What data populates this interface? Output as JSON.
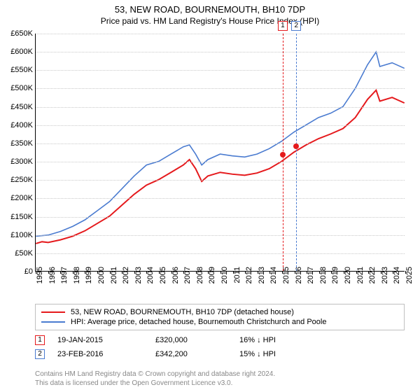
{
  "title": {
    "main": "53, NEW ROAD, BOURNEMOUTH, BH10 7DP",
    "sub": "Price paid vs. HM Land Registry's House Price Index (HPI)"
  },
  "chart": {
    "type": "line",
    "background_color": "#ffffff",
    "grid_color": "#c8c8c8",
    "axis_color": "#000000",
    "label_fontsize": 11,
    "x_axis": {
      "min": 1995,
      "max": 2025,
      "tick_step": 1,
      "labels": [
        "1995",
        "1996",
        "1997",
        "1998",
        "1999",
        "2000",
        "2001",
        "2002",
        "2003",
        "2004",
        "2005",
        "2006",
        "2007",
        "2008",
        "2009",
        "2010",
        "2011",
        "2012",
        "2013",
        "2014",
        "2015",
        "2016",
        "2017",
        "2018",
        "2019",
        "2020",
        "2021",
        "2022",
        "2023",
        "2024",
        "2025"
      ]
    },
    "y_axis": {
      "min": 0,
      "max": 650,
      "tick_step": 50,
      "labels": [
        "£0",
        "£50K",
        "£100K",
        "£150K",
        "£200K",
        "£250K",
        "£300K",
        "£350K",
        "£400K",
        "£450K",
        "£500K",
        "£550K",
        "£600K",
        "£650K"
      ]
    },
    "series": [
      {
        "name": "53, NEW ROAD, BOURNEMOUTH, BH10 7DP (detached house)",
        "color": "#e5191c",
        "line_width": 2,
        "years": [
          1995,
          1995.5,
          1996,
          1997,
          1998,
          1999,
          2000,
          2001,
          2002,
          2003,
          2004,
          2005,
          2006,
          2007,
          2007.5,
          2008,
          2008.5,
          2009,
          2010,
          2011,
          2012,
          2013,
          2014,
          2015,
          2016,
          2017,
          2018,
          2019,
          2020,
          2021,
          2022,
          2022.7,
          2023,
          2024,
          2025
        ],
        "values": [
          75,
          80,
          78,
          85,
          95,
          110,
          130,
          150,
          180,
          210,
          235,
          250,
          270,
          290,
          305,
          280,
          245,
          260,
          270,
          265,
          262,
          268,
          280,
          300,
          325,
          345,
          362,
          375,
          390,
          420,
          470,
          495,
          465,
          475,
          460
        ]
      },
      {
        "name": "HPI: Average price, detached house, Bournemouth Christchurch and Poole",
        "color": "#4a7bd0",
        "line_width": 1.6,
        "years": [
          1995,
          1996,
          1997,
          1998,
          1999,
          2000,
          2001,
          2002,
          2003,
          2004,
          2005,
          2006,
          2007,
          2007.5,
          2008,
          2008.5,
          2009,
          2010,
          2011,
          2012,
          2013,
          2014,
          2015,
          2016,
          2017,
          2018,
          2019,
          2020,
          2021,
          2022,
          2022.7,
          2023,
          2024,
          2025
        ],
        "values": [
          95,
          98,
          108,
          122,
          140,
          165,
          190,
          225,
          260,
          290,
          300,
          320,
          340,
          345,
          320,
          290,
          305,
          320,
          315,
          312,
          320,
          335,
          355,
          380,
          400,
          420,
          432,
          450,
          500,
          565,
          600,
          560,
          570,
          555
        ]
      }
    ],
    "sale_markers": [
      {
        "n": "1",
        "year": 2015.05,
        "border_color": "#e5191c"
      },
      {
        "n": "2",
        "year": 2016.15,
        "border_color": "#4a7bd0"
      }
    ],
    "sale_points": [
      {
        "year": 2015.05,
        "value": 320,
        "color": "#e5191c"
      },
      {
        "year": 2016.15,
        "value": 342.2,
        "color": "#e5191c"
      }
    ]
  },
  "legend": {
    "items": [
      {
        "color": "#e5191c",
        "label": "53, NEW ROAD, BOURNEMOUTH, BH10 7DP (detached house)"
      },
      {
        "color": "#4a7bd0",
        "label": "HPI: Average price, detached house, Bournemouth Christchurch and Poole"
      }
    ]
  },
  "sales": [
    {
      "n": "1",
      "border_color": "#e5191c",
      "date": "19-JAN-2015",
      "price": "£320,000",
      "delta": "16% ↓ HPI"
    },
    {
      "n": "2",
      "border_color": "#4a7bd0",
      "date": "23-FEB-2016",
      "price": "£342,200",
      "delta": "15% ↓ HPI"
    }
  ],
  "license": {
    "line1": "Contains HM Land Registry data © Crown copyright and database right 2024.",
    "line2": "This data is licensed under the Open Government Licence v3.0."
  }
}
